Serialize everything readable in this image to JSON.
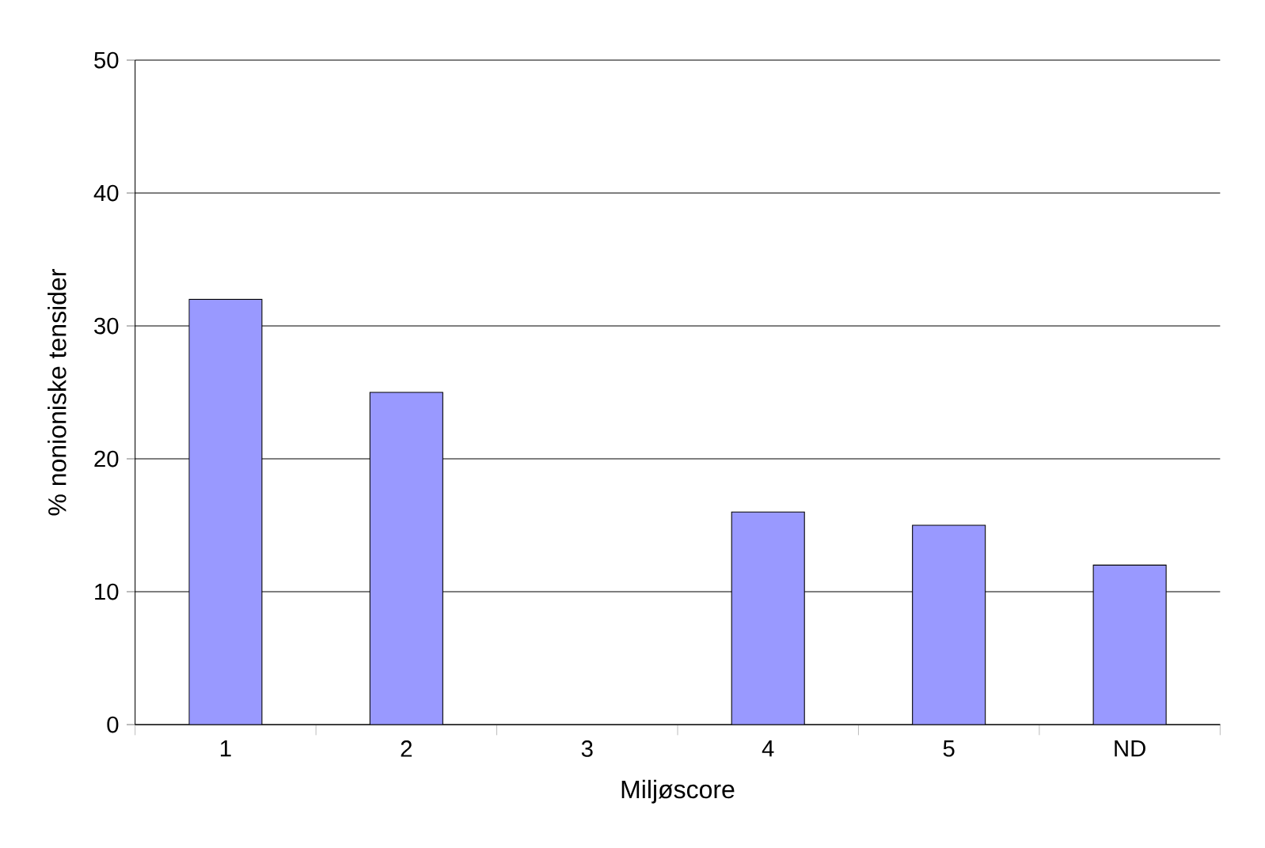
{
  "chart_data": {
    "type": "bar",
    "xlabel": "Miljøscore",
    "ylabel": "% nonioniske tensider",
    "categories": [
      "1",
      "2",
      "3",
      "4",
      "5",
      "ND"
    ],
    "values": [
      32,
      25,
      null,
      16,
      15,
      12
    ],
    "color": "#9999ff",
    "ylim": [
      0,
      50
    ],
    "yticks": [
      0,
      10,
      20,
      30,
      40,
      50
    ],
    "grid": "y"
  }
}
